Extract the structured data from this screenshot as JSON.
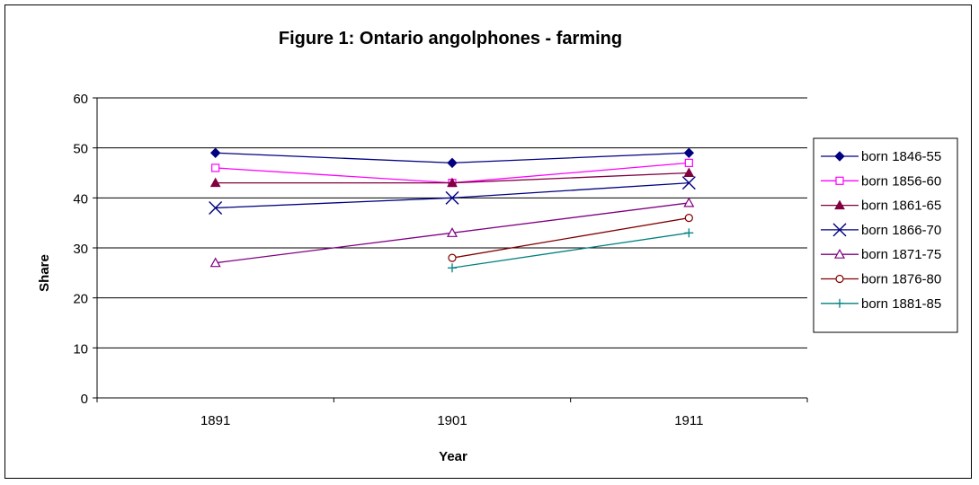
{
  "chart_data": {
    "type": "line",
    "title": "Figure 1: Ontario angolphones - farming",
    "xlabel": "Year",
    "ylabel": "Share",
    "categories": [
      "1891",
      "1901",
      "1911"
    ],
    "ylim": [
      0,
      60
    ],
    "yticks": [
      "0",
      "10",
      "20",
      "30",
      "40",
      "50",
      "60"
    ],
    "grid": true,
    "legend_position": "right",
    "series": [
      {
        "name": "born 1846-55",
        "values": [
          49,
          47,
          49
        ],
        "color": "#000080",
        "marker": "diamond-filled"
      },
      {
        "name": "born 1856-60",
        "values": [
          46,
          43,
          47
        ],
        "color": "#ff00ff",
        "marker": "square-open"
      },
      {
        "name": "born 1861-65",
        "values": [
          43,
          43,
          45
        ],
        "color": "#800040",
        "marker": "triangle-filled"
      },
      {
        "name": "born 1866-70",
        "values": [
          38,
          40,
          43
        ],
        "color": "#000080",
        "marker": "x"
      },
      {
        "name": "born 1871-75",
        "values": [
          27,
          33,
          39
        ],
        "color": "#800080",
        "marker": "triangle-open"
      },
      {
        "name": "born 1876-80",
        "values": [
          null,
          28,
          36
        ],
        "color": "#800000",
        "marker": "circle-open"
      },
      {
        "name": "born 1881-85",
        "values": [
          null,
          26,
          33
        ],
        "color": "#008080",
        "marker": "plus"
      }
    ]
  }
}
